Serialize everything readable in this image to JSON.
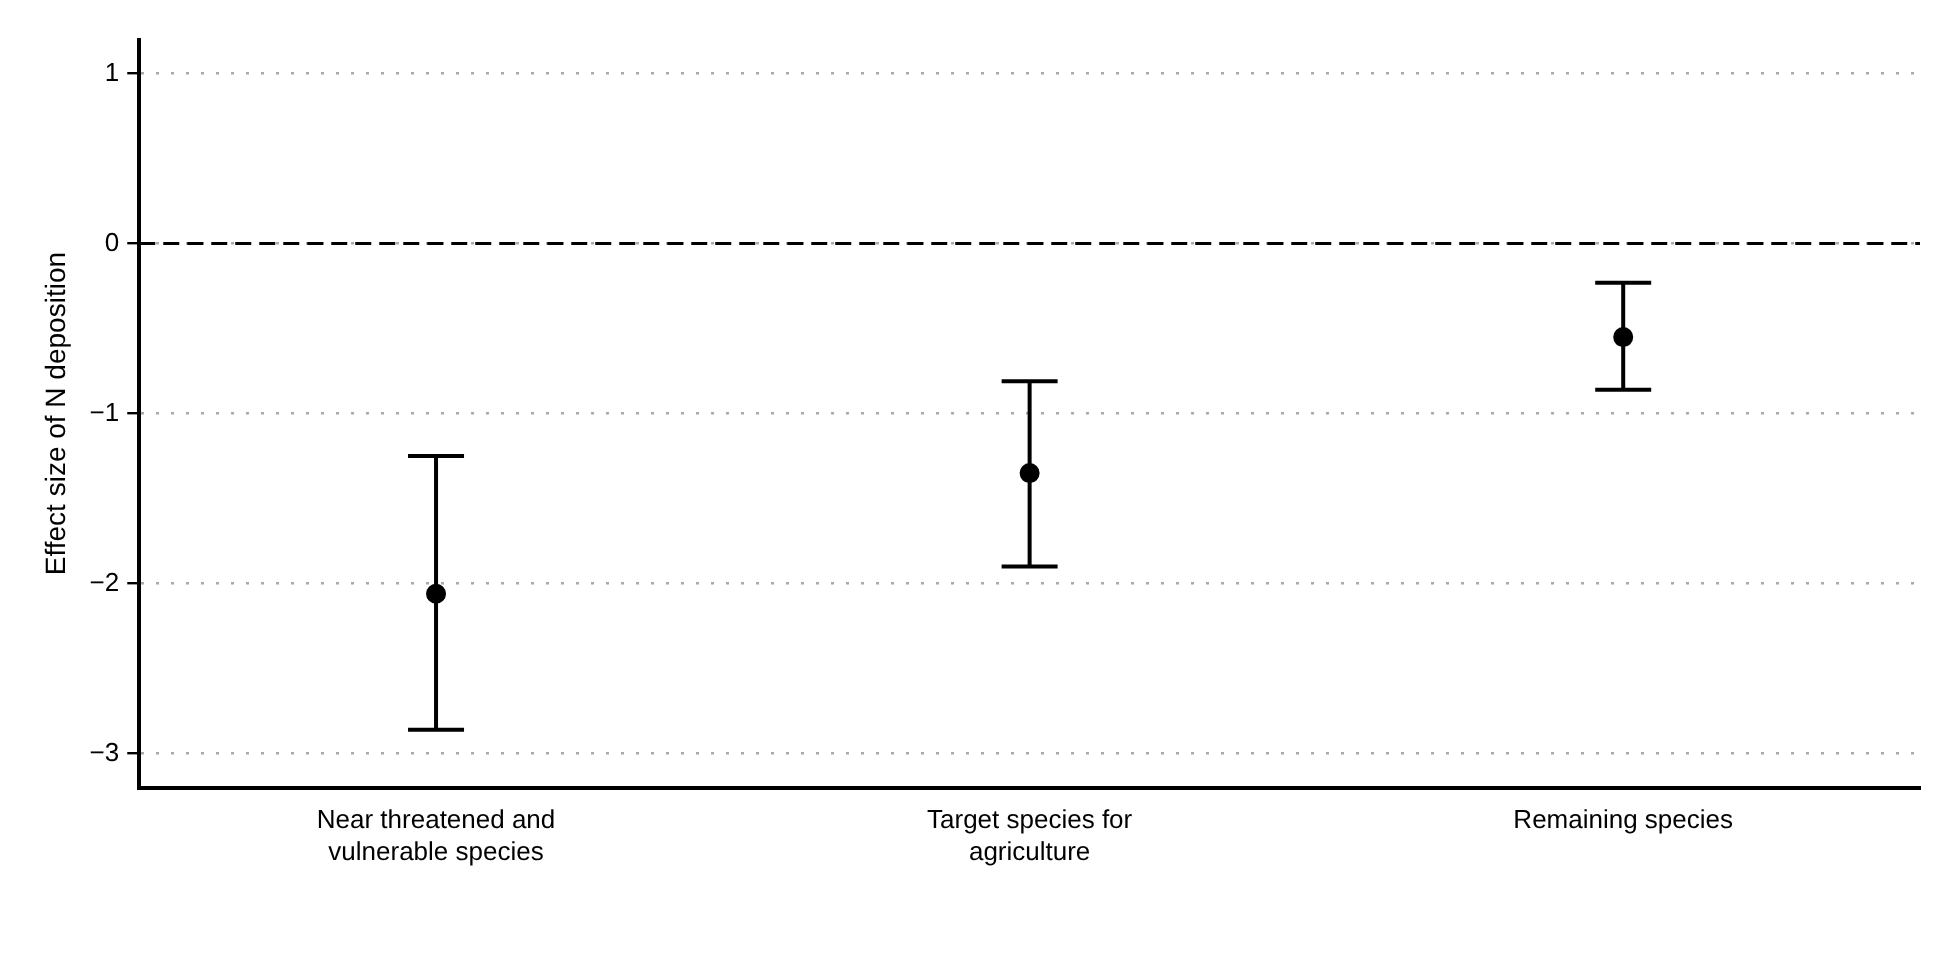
{
  "chart_data": {
    "type": "scatter",
    "ylabel": "Effect size of N deposition",
    "categories": [
      "Near threatened and vulnerable species",
      "Target species for agriculture",
      "Remaining species"
    ],
    "values": [
      -2.06,
      -1.35,
      -0.55
    ],
    "errors": [
      [
        -2.86,
        -1.25
      ],
      [
        -1.9,
        -0.81
      ],
      [
        -0.86,
        -0.23
      ]
    ],
    "color": "#000000",
    "marker": "circle",
    "ylim": [
      -3.2,
      1.2
    ],
    "yticks": [
      -3,
      -2,
      -1,
      0,
      1
    ],
    "grid": "y",
    "legend": false,
    "ref_lines": [
      {
        "axis": "y",
        "value": 0,
        "color": "#000000",
        "line_style": "dashed"
      }
    ]
  }
}
